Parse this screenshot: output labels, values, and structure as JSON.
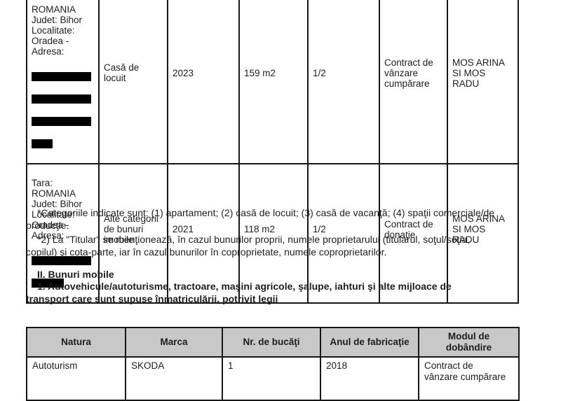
{
  "colors": {
    "page_background": "#ffffff",
    "text": "#1d1d1d",
    "table_border": "#161616",
    "vehicles_header_background": "#c8c8c8",
    "redaction": "#000000"
  },
  "immobile_table": {
    "rows": [
      {
        "address": "ROMANIA\nJudet: Bihor\nLocalitate:\nOradea -\nAdresa:",
        "category": "Casă de\nlocuit",
        "year": "2023",
        "surface": "159 m2",
        "share": "1/2",
        "acquisition": "Contract de\nvânzare\ncumpărare",
        "owner": "MOS ARINA\nSI MOS\nRADU"
      },
      {
        "address": "Tara:\nROMANIA\nJudet: Bihor\nLocalitate:\nOradea -\nAdresa:",
        "category": "Alte categorii\nde bunuri\nimobile",
        "year": "2021",
        "surface": "118 m2",
        "share": "1/2",
        "acquisition": "Contract de\ndonaţie",
        "owner": "MOS ARINA\nSI MOS\nRADU"
      }
    ]
  },
  "footnotes": {
    "categories": "*Categoriile indicate sunt: (1) apartament; (2) casă de locuit; (3) casă de vacanţă; (4) spaţii comerciale/de\nproducţie.",
    "titular": "*2) La \"Titular\" se menţionează, în cazul bunurilor proprii, numele proprietarului (titularul, soţul/soţia,\ncopilul) şi cota-parte, iar în cazul bunurilor în coproprietate, numele coproprietarilor."
  },
  "section": {
    "title": "II. Bunuri mobile",
    "subtitle": "1. Autovehicule/autoturisme, tractoare, maşini agricole, şalupe, iahturi şi alte mijloace de\ntransport care sunt supuse înmatriculării, potrivit legii"
  },
  "vehicles_table": {
    "headers": {
      "natura": "Natura",
      "marca": "Marca",
      "nr_bucati": "Nr. de bucăţi",
      "an_fabricatie": "Anul de fabricaţie",
      "mod_dobandire": "Modul de\ndobândire"
    },
    "rows": [
      {
        "natura": "Autoturism",
        "marca": "SKODA",
        "nr_bucati": "1",
        "an_fabricatie": "2018",
        "mod_dobandire": "Contract de\nvânzare cumpărare"
      }
    ]
  }
}
